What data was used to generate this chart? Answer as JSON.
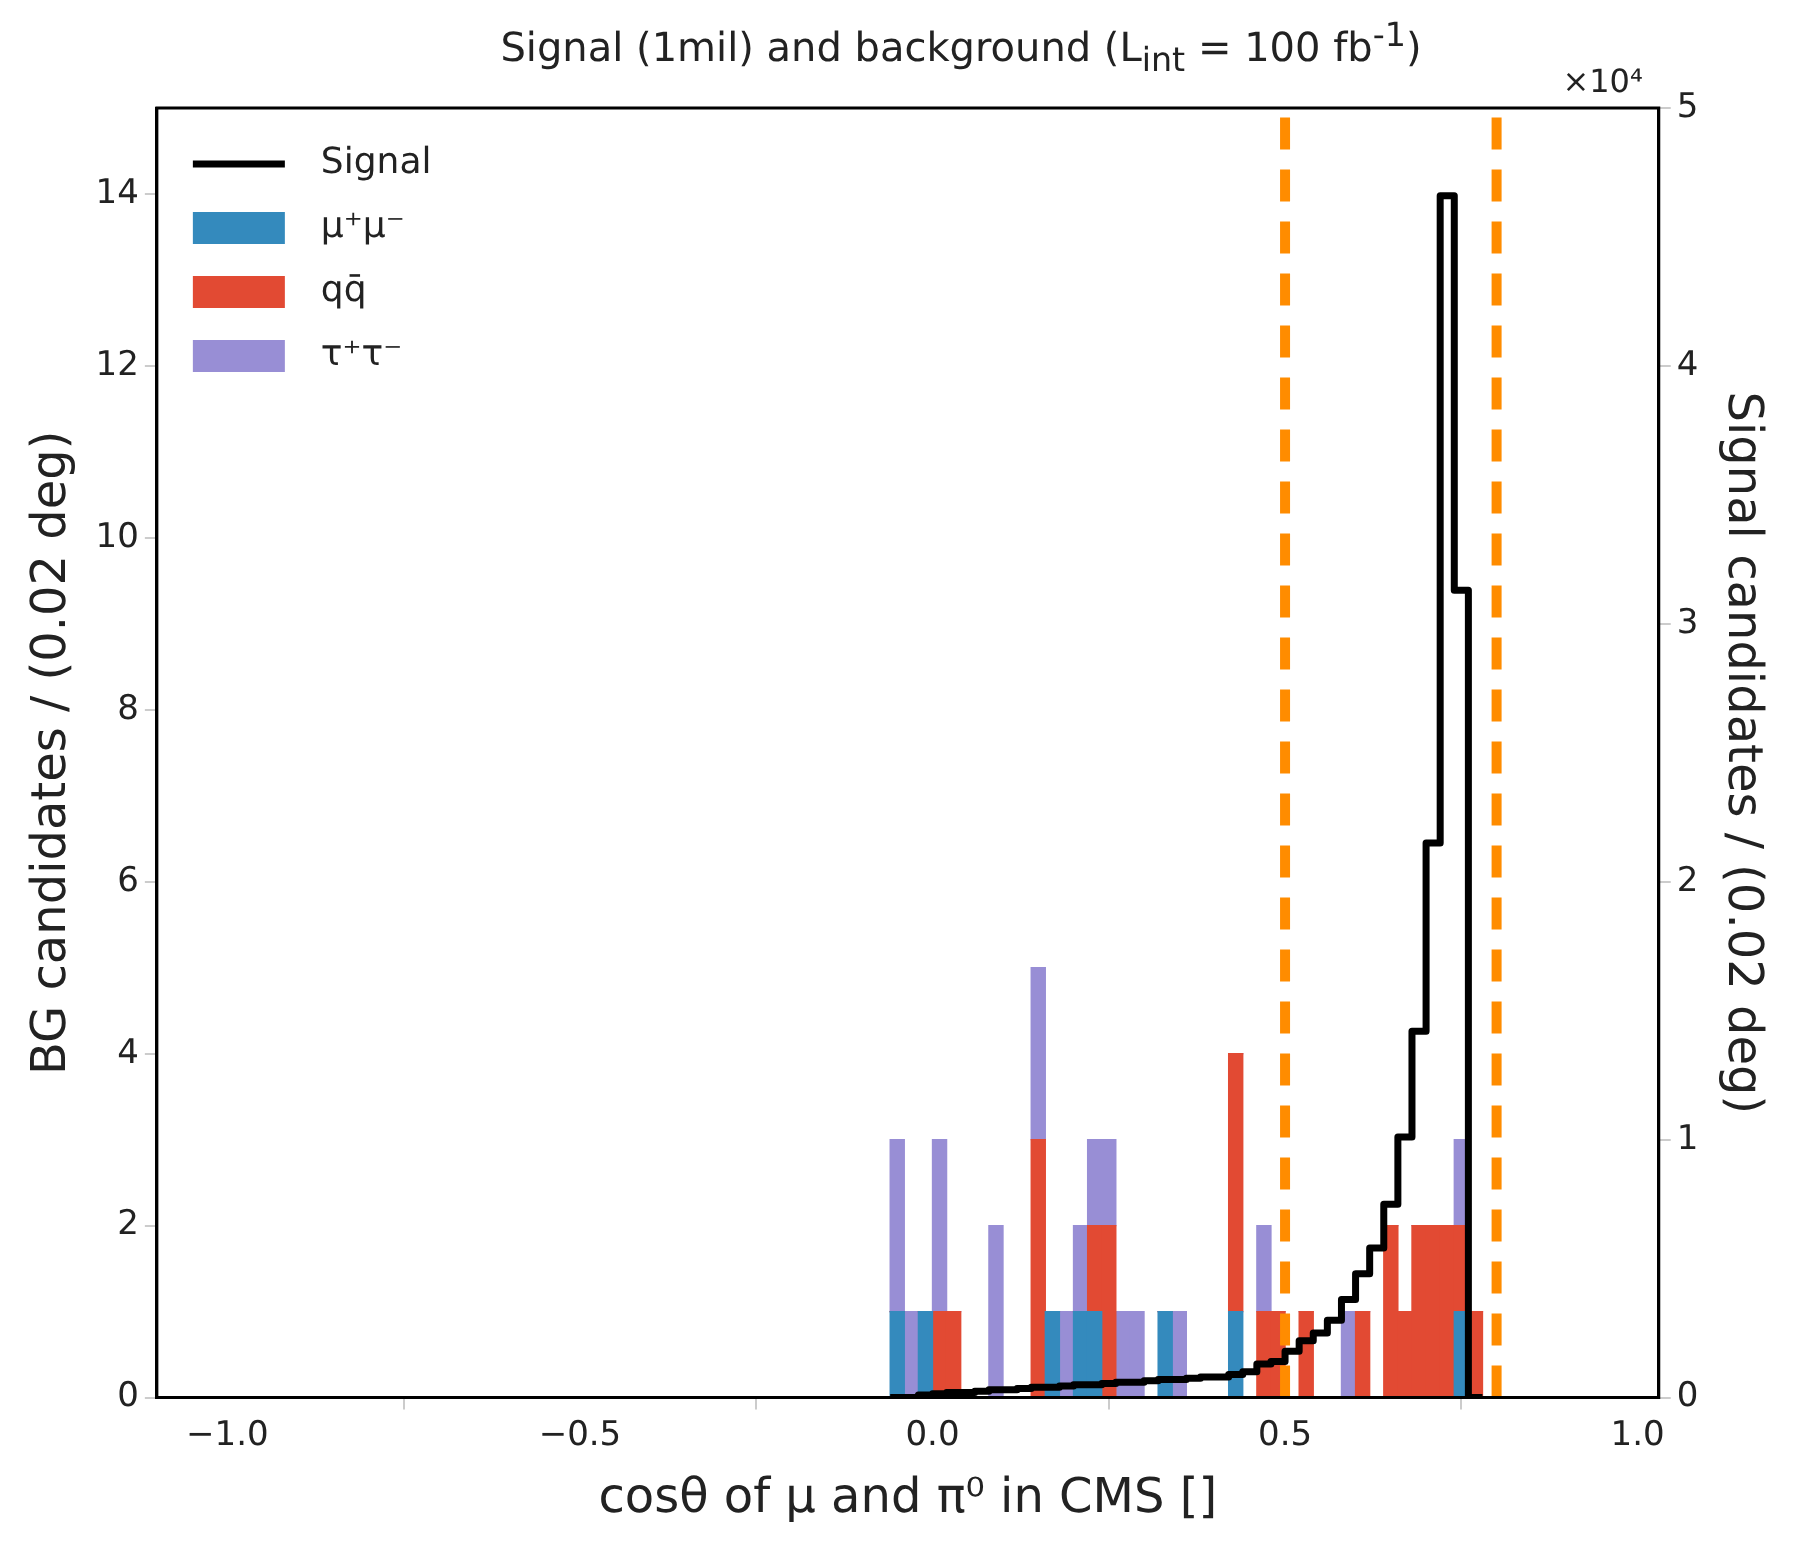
{
  "chart_data": {
    "type": "bar",
    "title": "Signal (1mil) and background (L$_{int}$ = 100 fb$^{-1}$)",
    "xlabel": "cosθ of μ and π⁰ in CMS []",
    "ylabel": "BG candidates / (0.02 deg)",
    "y2label": "Signal candidates / (0.02 deg)",
    "x": [
      -0.05,
      -0.03,
      -0.01,
      0.01,
      0.03,
      0.05,
      0.07,
      0.09,
      0.11,
      0.13,
      0.15,
      0.17,
      0.19,
      0.21,
      0.23,
      0.25,
      0.27,
      0.29,
      0.31,
      0.33,
      0.35,
      0.37,
      0.39,
      0.41,
      0.43,
      0.45,
      0.47,
      0.49,
      0.51,
      0.53,
      0.55,
      0.57,
      0.59,
      0.61,
      0.63,
      0.65,
      0.67,
      0.69,
      0.71,
      0.73,
      0.75,
      0.77,
      0.79
    ],
    "series": [
      {
        "name": "Signal",
        "type": "step",
        "axis": "y2",
        "color": "#000000",
        "x": [
          -0.06,
          -0.04,
          -0.02,
          0,
          0.02,
          0.04,
          0.06,
          0.08,
          0.1,
          0.12,
          0.14,
          0.16,
          0.18,
          0.2,
          0.22,
          0.24,
          0.26,
          0.28,
          0.3,
          0.32,
          0.34,
          0.36,
          0.38,
          0.4,
          0.42,
          0.44,
          0.46,
          0.48,
          0.5,
          0.52,
          0.54,
          0.56,
          0.58,
          0.6,
          0.62,
          0.64,
          0.66,
          0.68,
          0.7,
          0.72,
          0.74,
          0.76,
          0.78
        ],
        "values": [
          0,
          0,
          0,
          0.01,
          0.015,
          0.02,
          0.02,
          0.025,
          0.03,
          0.03,
          0.035,
          0.04,
          0.04,
          0.045,
          0.05,
          0.05,
          0.055,
          0.06,
          0.06,
          0.065,
          0.07,
          0.07,
          0.075,
          0.08,
          0.08,
          0.09,
          0.1,
          0.13,
          0.14,
          0.18,
          0.22,
          0.25,
          0.3,
          0.38,
          0.48,
          0.58,
          0.75,
          1.01,
          1.42,
          2.15,
          4.66,
          3.13,
          0
        ]
      },
      {
        "name": "μ⁺μ⁻",
        "color": "#348abd",
        "values": [
          1,
          0,
          1,
          0,
          0,
          0,
          0,
          0,
          0,
          0,
          0,
          1,
          0,
          1,
          1,
          0,
          0,
          0,
          0,
          1,
          0,
          0,
          0,
          0,
          1,
          0,
          0,
          0,
          0,
          0,
          0,
          0,
          0,
          0,
          0,
          0,
          0,
          0,
          0,
          0,
          1,
          0,
          0
        ]
      },
      {
        "name": "qq̄",
        "color": "#e24a33",
        "values": [
          0,
          0,
          0,
          1,
          1,
          0,
          0,
          0,
          0,
          0,
          3,
          0,
          0,
          0,
          1,
          2,
          0,
          0,
          0,
          0,
          0,
          0,
          0,
          0,
          3,
          0,
          1,
          1,
          null,
          1,
          0,
          0,
          0,
          1,
          0,
          2,
          1,
          2,
          2,
          2,
          1,
          1,
          0
        ]
      },
      {
        "name": "τ⁺τ⁻",
        "color": "#988ed5",
        "values": [
          2,
          1,
          0,
          2,
          0,
          0,
          0,
          2,
          0,
          0,
          2,
          0,
          1,
          1,
          1,
          1,
          1,
          1,
          0,
          0,
          1,
          0,
          0,
          0,
          0,
          0,
          1,
          0,
          0,
          0,
          0,
          0,
          1,
          0,
          0,
          0,
          0,
          0,
          0,
          0,
          1,
          0,
          0
        ]
      }
    ],
    "stacked": true,
    "xlim": [
      -1.1,
      1.03
    ],
    "xticks": [
      {
        "value": -1,
        "label": "−1.0"
      },
      {
        "value": -0.5,
        "label": "−0.5"
      },
      {
        "value": 0,
        "label": "0.0"
      },
      {
        "value": 0.5,
        "label": "0.5"
      },
      {
        "value": 1,
        "label": "1.0"
      }
    ],
    "ylim": [
      0,
      15
    ],
    "yticks": [
      0,
      2,
      4,
      6,
      8,
      10,
      12,
      14
    ],
    "y2lim": [
      0,
      5
    ],
    "y2ticks": [
      0,
      1,
      2,
      3,
      4,
      5
    ],
    "ref_lines": [
      {
        "axis": "x",
        "value": 0.5,
        "color": "#ff8c00",
        "line_style": "dashed"
      },
      {
        "axis": "x",
        "value": 0.8,
        "color": "#ff8c00",
        "line_style": "dashed"
      }
    ],
    "annotations": [
      "×10⁴"
    ],
    "legend": "top left",
    "grid": false
  }
}
